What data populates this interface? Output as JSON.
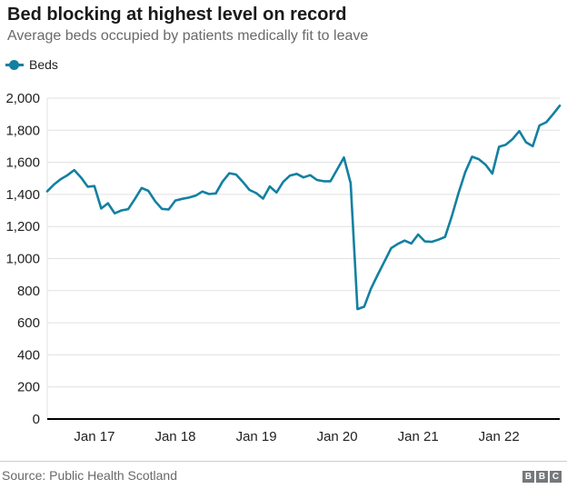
{
  "header": {
    "title": "Bed blocking at highest level on record",
    "subtitle": "Average beds occupied by patients medically fit to leave"
  },
  "legend": {
    "label": "Beds"
  },
  "footer": {
    "source": "Source: Public Health Scotland",
    "logo_letters": [
      "B",
      "B",
      "C"
    ]
  },
  "colors": {
    "line": "#1380A1",
    "grid": "#e1e1e1",
    "axis": "#000000",
    "tick_text": "#222222",
    "muted_text": "#696969",
    "logo_bg": "#75787b"
  },
  "chart_data": {
    "type": "line",
    "title": "Bed blocking at highest level on record",
    "subtitle": "Average beds occupied by patients medically fit to leave",
    "xlabel": "",
    "ylabel": "",
    "ylim": [
      0,
      2000
    ],
    "grid": "horizontal",
    "legend_position": "top-left",
    "y_ticks": [
      0,
      200,
      400,
      600,
      800,
      1000,
      1200,
      1400,
      1600,
      1800,
      2000
    ],
    "y_tick_labels": [
      "0",
      "200",
      "400",
      "600",
      "800",
      "1,000",
      "1,200",
      "1,400",
      "1,600",
      "1,800",
      "2,000"
    ],
    "x_tick_labels": [
      "Jan 17",
      "Jan 18",
      "Jan 19",
      "Jan 20",
      "Jan 21",
      "Jan 22"
    ],
    "x_tick_indices": [
      7,
      19,
      31,
      43,
      55,
      67
    ],
    "series": [
      {
        "name": "Beds",
        "color": "#1380A1",
        "values": [
          1420,
          1462,
          1495,
          1520,
          1552,
          1506,
          1448,
          1452,
          1312,
          1345,
          1282,
          1300,
          1308,
          1372,
          1440,
          1422,
          1358,
          1310,
          1306,
          1362,
          1372,
          1380,
          1392,
          1418,
          1402,
          1406,
          1480,
          1532,
          1524,
          1478,
          1428,
          1408,
          1374,
          1450,
          1412,
          1478,
          1518,
          1528,
          1506,
          1520,
          1490,
          1482,
          1482,
          1556,
          1630,
          1470,
          685,
          700,
          812,
          898,
          982,
          1065,
          1092,
          1112,
          1094,
          1150,
          1107,
          1104,
          1118,
          1135,
          1265,
          1410,
          1540,
          1635,
          1620,
          1585,
          1530,
          1697,
          1710,
          1745,
          1795,
          1725,
          1700,
          1830,
          1850,
          1900,
          1953
        ]
      }
    ]
  }
}
